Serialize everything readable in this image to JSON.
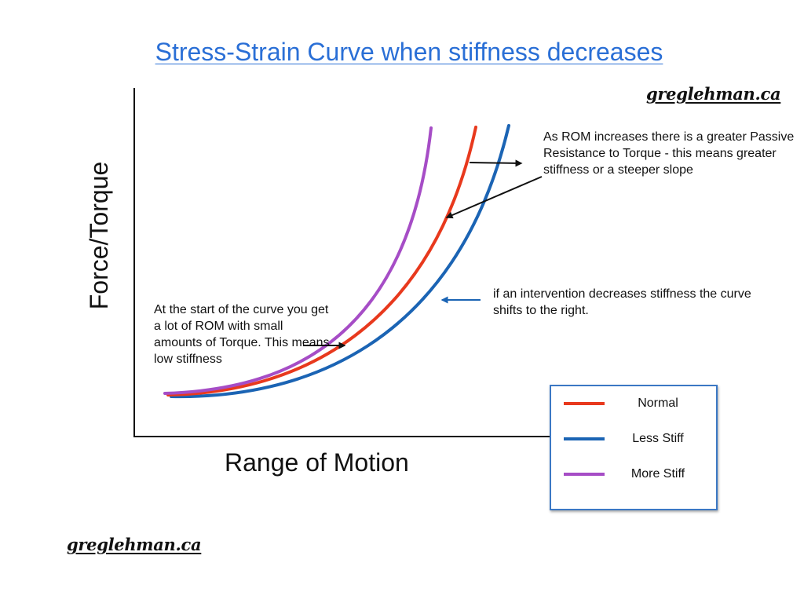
{
  "title": "Stress-Strain Curve when stiffness decreases",
  "watermark": "greglehman.ca",
  "chart_data": {
    "type": "line",
    "xlabel": "Range of Motion",
    "ylabel": "Force/Torque",
    "grid": false,
    "legend_position": "bottom-right",
    "series": [
      {
        "name": "Normal",
        "color": "#e8391d"
      },
      {
        "name": "Less Stiff",
        "color": "#1b64b4"
      },
      {
        "name": "More Stiff",
        "color": "#a64dc6"
      }
    ]
  },
  "annotations": {
    "top": "As ROM increases there is a greater Passive Resistance to Torque - this means greater stiffness or a steeper slope",
    "middle": "if an intervention decreases stiffness the curve shifts to the right.",
    "left": "At the start of the curve you get a lot of ROM with small amounts of Torque.  This means low stiffness"
  },
  "colors": {
    "title": "#2a6fd6",
    "axis": "#111111",
    "arrow_black": "#111111",
    "arrow_blue": "#1b64b4",
    "legend_border": "#3b78c4"
  }
}
